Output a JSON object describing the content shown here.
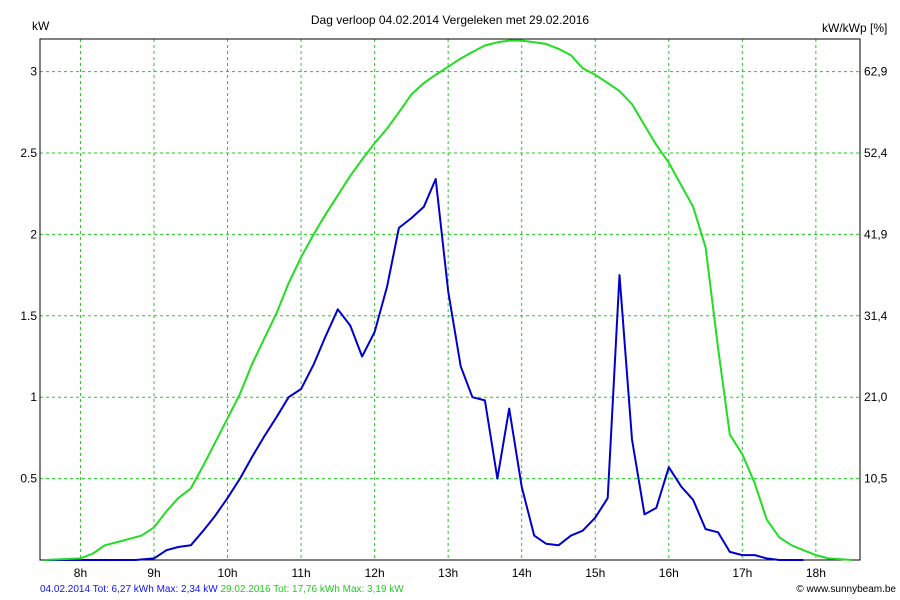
{
  "chart_data": {
    "type": "line",
    "title": "Dag  verloop 04.02.2014   Vergeleken met 29.02.2016",
    "ylabel_left": "kW",
    "ylabel_right": "kW/kWp [%]",
    "x_unit": "h",
    "xlim": [
      7.45,
      18.6
    ],
    "ylim": [
      0,
      3.2
    ],
    "x_ticks": [
      8,
      9,
      10,
      11,
      12,
      13,
      14,
      15,
      16,
      17,
      18
    ],
    "x_tick_labels": [
      "8h",
      "9h",
      "10h",
      "11h",
      "12h",
      "13h",
      "14h",
      "15h",
      "16h",
      "17h",
      "18h"
    ],
    "y_ticks": [
      0.5,
      1,
      1.5,
      2,
      2.5,
      3
    ],
    "y_tick_labels": [
      "0.5",
      "1",
      "1.5",
      "2",
      "2.5",
      "3"
    ],
    "y2_tick_labels": [
      "10,5",
      "21,0",
      "31,4",
      "41,9",
      "52,4",
      "62,9"
    ],
    "grid": true,
    "series": [
      {
        "name": "04.02.2014",
        "color": "#0000cc",
        "x": [
          7.5,
          8.75,
          9.0,
          9.17,
          9.33,
          9.5,
          9.67,
          9.83,
          10.0,
          10.17,
          10.33,
          10.5,
          10.67,
          10.83,
          11.0,
          11.17,
          11.33,
          11.5,
          11.67,
          11.83,
          12.0,
          12.17,
          12.33,
          12.5,
          12.67,
          12.83,
          13.0,
          13.17,
          13.33,
          13.5,
          13.67,
          13.83,
          14.0,
          14.17,
          14.33,
          14.5,
          14.67,
          14.83,
          15.0,
          15.17,
          15.33,
          15.5,
          15.67,
          15.83,
          16.0,
          16.17,
          16.33,
          16.5,
          16.67,
          16.83,
          17.0,
          17.17,
          17.33,
          17.5,
          17.67,
          17.83
        ],
        "values": [
          0,
          0,
          0.01,
          0.06,
          0.08,
          0.09,
          0.18,
          0.27,
          0.38,
          0.5,
          0.63,
          0.76,
          0.88,
          1.0,
          1.05,
          1.2,
          1.37,
          1.54,
          1.44,
          1.25,
          1.4,
          1.68,
          2.04,
          2.1,
          2.17,
          2.34,
          1.65,
          1.19,
          1.0,
          0.98,
          0.5,
          0.93,
          0.45,
          0.15,
          0.1,
          0.09,
          0.15,
          0.18,
          0.26,
          0.38,
          1.75,
          0.74,
          0.28,
          0.32,
          0.57,
          0.45,
          0.37,
          0.19,
          0.17,
          0.05,
          0.03,
          0.03,
          0.01,
          0.0,
          0.0,
          0.0
        ]
      },
      {
        "name": "29.02.2016",
        "color": "#22dd22",
        "x": [
          7.5,
          8.0,
          8.17,
          8.33,
          8.5,
          8.67,
          8.83,
          9.0,
          9.17,
          9.33,
          9.5,
          9.67,
          9.83,
          10.0,
          10.17,
          10.33,
          10.5,
          10.67,
          10.83,
          11.0,
          11.17,
          11.33,
          11.5,
          11.67,
          11.83,
          12.0,
          12.17,
          12.33,
          12.5,
          12.67,
          12.83,
          13.0,
          13.17,
          13.33,
          13.5,
          13.67,
          13.83,
          14.0,
          14.17,
          14.33,
          14.5,
          14.67,
          14.83,
          15.0,
          15.17,
          15.33,
          15.5,
          15.67,
          15.83,
          16.0,
          16.17,
          16.33,
          16.5,
          16.67,
          16.83,
          17.0,
          17.17,
          17.33,
          17.5,
          17.67,
          17.83,
          18.0,
          18.17,
          18.5
        ],
        "values": [
          0,
          0.01,
          0.04,
          0.09,
          0.11,
          0.13,
          0.15,
          0.2,
          0.3,
          0.38,
          0.44,
          0.58,
          0.72,
          0.87,
          1.02,
          1.2,
          1.36,
          1.52,
          1.7,
          1.86,
          2.0,
          2.12,
          2.24,
          2.36,
          2.46,
          2.56,
          2.65,
          2.75,
          2.86,
          2.93,
          2.98,
          3.03,
          3.08,
          3.12,
          3.16,
          3.18,
          3.19,
          3.19,
          3.18,
          3.17,
          3.14,
          3.1,
          3.02,
          2.98,
          2.93,
          2.88,
          2.8,
          2.67,
          2.55,
          2.44,
          2.3,
          2.17,
          1.92,
          1.3,
          0.77,
          0.65,
          0.47,
          0.25,
          0.14,
          0.09,
          0.06,
          0.03,
          0.01,
          0
        ]
      }
    ]
  },
  "footer": {
    "blue_text": "04.02.2014 Tot: 6,27 kWh Max: 2,34 kW",
    "green_text": "29.02.2016 Tot: 17,76 kWh Max: 3,19 kW",
    "credit": "© www.sunnybeam.be"
  }
}
